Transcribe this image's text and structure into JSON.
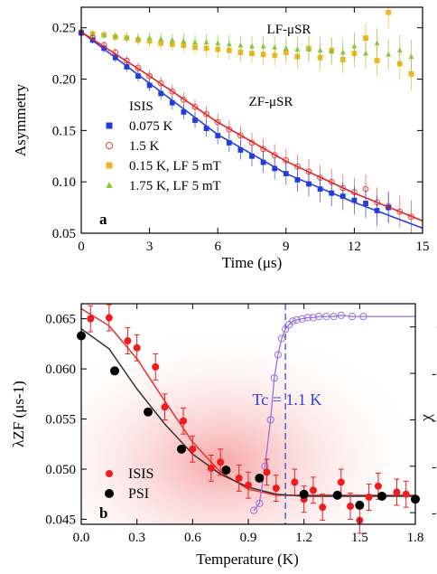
{
  "chart_data": [
    {
      "panel": "a",
      "type": "scatter",
      "xlabel": "Time (μs)",
      "ylabel": "Asymmetry",
      "xlim": [
        0,
        15
      ],
      "ylim": [
        0.05,
        0.27
      ],
      "xticks": [
        0,
        3,
        6,
        9,
        12,
        15
      ],
      "yticks": [
        0.05,
        0.1,
        0.15,
        0.2,
        0.25
      ],
      "annotations": {
        "lf": "LF-μSR",
        "zf": "ZF-μSR",
        "panel_label": "a"
      },
      "legend_title": "ISIS",
      "legend_position": "left",
      "series": [
        {
          "name": "0.075 K",
          "marker": "filled-square",
          "color": "#1f3cdd",
          "x": [
            0.0,
            0.5,
            1.0,
            1.5,
            2.0,
            2.5,
            3.0,
            3.5,
            4.0,
            4.5,
            5.0,
            5.5,
            6.0,
            6.5,
            7.0,
            7.5,
            8.0,
            8.5,
            9.0,
            9.5,
            10.0,
            10.5,
            11.0,
            11.5,
            12.0,
            12.5,
            13.0,
            13.5
          ],
          "y": [
            0.245,
            0.238,
            0.23,
            0.221,
            0.212,
            0.203,
            0.194,
            0.186,
            0.177,
            0.168,
            0.16,
            0.152,
            0.145,
            0.138,
            0.131,
            0.125,
            0.119,
            0.113,
            0.108,
            0.102,
            0.098,
            0.093,
            0.089,
            0.086,
            0.082,
            0.079,
            0.072,
            0.075
          ]
        },
        {
          "name": "1.5 K",
          "marker": "open-circle",
          "color": "#e8453c",
          "x": [
            0.0,
            0.5,
            1.0,
            1.5,
            2.0,
            2.5,
            3.0,
            3.5,
            4.0,
            4.5,
            5.0,
            5.5,
            6.0,
            6.5,
            7.0,
            7.5,
            8.0,
            8.5,
            9.0,
            9.5,
            10.0,
            10.5,
            11.0,
            11.5,
            12.0,
            12.5,
            13.0,
            13.5,
            14.0,
            14.5
          ],
          "y": [
            0.245,
            0.24,
            0.233,
            0.226,
            0.218,
            0.211,
            0.203,
            0.196,
            0.188,
            0.18,
            0.173,
            0.166,
            0.158,
            0.151,
            0.145,
            0.138,
            0.132,
            0.126,
            0.121,
            0.115,
            0.11,
            0.104,
            0.1,
            0.094,
            0.09,
            0.093,
            0.08,
            0.076,
            0.071,
            0.066
          ]
        },
        {
          "name": "0.15 K, LF 5 mT",
          "marker": "filled-square",
          "color": "#f2b51a",
          "x": [
            0.0,
            0.5,
            1.0,
            1.5,
            2.0,
            2.5,
            3.0,
            3.5,
            4.0,
            4.5,
            5.0,
            5.5,
            6.0,
            6.5,
            7.0,
            7.5,
            8.0,
            8.5,
            9.0,
            9.5,
            10.0,
            10.5,
            11.0,
            11.5,
            12.0,
            12.5,
            13.0,
            13.5,
            14.0,
            14.5
          ],
          "y": [
            0.246,
            0.244,
            0.243,
            0.241,
            0.24,
            0.238,
            0.237,
            0.235,
            0.234,
            0.233,
            0.231,
            0.23,
            0.229,
            0.228,
            0.226,
            0.225,
            0.224,
            0.223,
            0.226,
            0.222,
            0.23,
            0.221,
            0.228,
            0.219,
            0.225,
            0.24,
            0.218,
            0.265,
            0.215,
            0.205
          ]
        },
        {
          "name": "1.75 K, LF 5 mT",
          "marker": "filled-triangle",
          "color": "#8cc63f",
          "x": [
            0.0,
            0.5,
            1.0,
            1.5,
            2.0,
            2.5,
            3.0,
            3.5,
            4.0,
            4.5,
            5.0,
            5.5,
            6.0,
            6.5,
            7.0,
            7.5,
            8.0,
            8.5,
            9.0,
            9.5,
            10.0,
            10.5,
            11.0,
            11.5,
            12.0,
            12.5,
            13.0,
            13.5,
            14.0,
            14.5
          ],
          "y": [
            0.245,
            0.244,
            0.243,
            0.242,
            0.241,
            0.24,
            0.24,
            0.239,
            0.238,
            0.237,
            0.236,
            0.236,
            0.235,
            0.234,
            0.233,
            0.232,
            0.232,
            0.231,
            0.23,
            0.229,
            0.229,
            0.228,
            0.227,
            0.226,
            0.232,
            0.225,
            0.235,
            0.224,
            0.228,
            0.222
          ]
        }
      ],
      "fits": [
        {
          "color": "#2a3fe0",
          "x": [
            0,
            3,
            6,
            9,
            12,
            15
          ],
          "y": [
            0.246,
            0.196,
            0.146,
            0.108,
            0.08,
            0.055
          ]
        },
        {
          "color": "#e82020",
          "x": [
            0,
            3,
            6,
            9,
            12,
            15
          ],
          "y": [
            0.246,
            0.203,
            0.158,
            0.12,
            0.089,
            0.062
          ]
        }
      ]
    },
    {
      "panel": "b",
      "type": "scatter",
      "xlabel": "Temperature (K)",
      "ylabel": "λZF (μs-1)",
      "ylabel_right": "χ",
      "xlim": [
        0.0,
        1.8
      ],
      "ylim": [
        0.0445,
        0.0665
      ],
      "ylim_right": [
        -0.85,
        0.1
      ],
      "xticks": [
        0.0,
        0.3,
        0.6,
        0.9,
        1.2,
        1.5,
        1.8
      ],
      "yticks": [
        0.045,
        0.05,
        0.055,
        0.06,
        0.065
      ],
      "yticks_right": [
        0.0,
        -0.2,
        -0.4,
        -0.6,
        -0.8
      ],
      "tc_annotation": "Tc = 1.1 K",
      "tc_value": 1.1,
      "panel_label": "b",
      "legend_position": "bottom-left",
      "series": [
        {
          "name": "ISIS",
          "marker": "filled-circle",
          "color": "#ee1c1c",
          "x": [
            0.05,
            0.15,
            0.25,
            0.3,
            0.4,
            0.45,
            0.55,
            0.6,
            0.7,
            0.75,
            0.85,
            0.9,
            1.0,
            1.05,
            1.15,
            1.2,
            1.25,
            1.3,
            1.4,
            1.45,
            1.5,
            1.55,
            1.6,
            1.7,
            1.75
          ],
          "y": [
            0.065,
            0.0651,
            0.0628,
            0.0621,
            0.0602,
            0.0562,
            0.0548,
            0.052,
            0.0501,
            0.0507,
            0.0491,
            0.0484,
            0.0497,
            0.0481,
            0.0487,
            0.047,
            0.0479,
            0.0462,
            0.0487,
            0.0463,
            0.0449,
            0.0472,
            0.0483,
            0.0477,
            0.0475
          ]
        },
        {
          "name": "PSI",
          "marker": "filled-circle",
          "color": "#000000",
          "x": [
            0.0,
            0.18,
            0.36,
            0.54,
            0.78,
            0.96,
            1.2,
            1.38,
            1.5,
            1.62,
            1.8
          ],
          "y": [
            0.0633,
            0.0598,
            0.0557,
            0.052,
            0.0499,
            0.0491,
            0.0475,
            0.0474,
            0.0464,
            0.0473,
            0.047
          ]
        },
        {
          "name": "χ",
          "marker": "open-circle",
          "color": "#9a6fe0",
          "axis": "right",
          "x": [
            0.93,
            0.96,
            0.99,
            1.02,
            1.04,
            1.06,
            1.08,
            1.1,
            1.12,
            1.14,
            1.16,
            1.19,
            1.22,
            1.25,
            1.28,
            1.32,
            1.36,
            1.4,
            1.46,
            1.52
          ],
          "y": [
            -0.79,
            -0.76,
            -0.6,
            -0.4,
            -0.22,
            -0.12,
            -0.05,
            -0.01,
            0.01,
            0.025,
            0.03,
            0.035,
            0.04,
            0.04,
            0.045,
            0.045,
            0.045,
            0.05,
            0.045,
            0.045
          ]
        }
      ],
      "fits": [
        {
          "color": "#e83030",
          "x": [
            0.0,
            0.15,
            0.3,
            0.45,
            0.6,
            0.75,
            0.9,
            1.05,
            1.2,
            1.4,
            1.8
          ],
          "y": [
            0.066,
            0.0643,
            0.061,
            0.0568,
            0.0527,
            0.0497,
            0.048,
            0.0474,
            0.0474,
            0.0474,
            0.0474
          ]
        },
        {
          "color": "#333333",
          "x": [
            0.0,
            0.15,
            0.3,
            0.45,
            0.6,
            0.75,
            0.9,
            1.05,
            1.2,
            1.4,
            1.8
          ],
          "y": [
            0.064,
            0.062,
            0.058,
            0.0545,
            0.0515,
            0.0495,
            0.0482,
            0.0475,
            0.0473,
            0.0473,
            0.0473
          ]
        }
      ],
      "chi_line_extension": {
        "x": [
          1.52,
          1.8
        ],
        "y": [
          0.045,
          0.045
        ]
      }
    }
  ]
}
